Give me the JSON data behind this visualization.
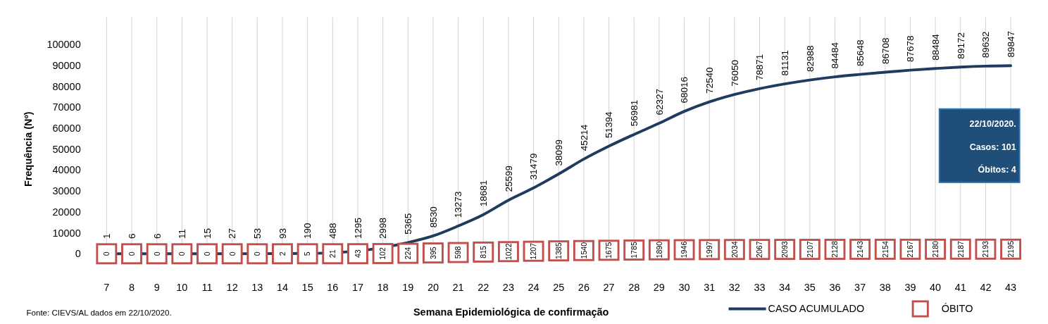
{
  "chart_data": {
    "type": "line",
    "xlabel": "Semana Epidemiológica de confirmação",
    "ylabel": "Frequência (Nº)",
    "categories": [
      "7",
      "8",
      "9",
      "10",
      "11",
      "12",
      "13",
      "14",
      "15",
      "16",
      "17",
      "18",
      "19",
      "20",
      "21",
      "22",
      "23",
      "24",
      "25",
      "26",
      "27",
      "28",
      "29",
      "30",
      "31",
      "32",
      "33",
      "34",
      "35",
      "36",
      "37",
      "38",
      "39",
      "40",
      "41",
      "42",
      "43"
    ],
    "series": [
      {
        "name": "CASO ACUMULADO",
        "color": "#1f3b5e",
        "marker": "none",
        "values": [
          1,
          6,
          6,
          11,
          15,
          27,
          53,
          93,
          190,
          488,
          1295,
          2998,
          5365,
          8530,
          13273,
          18681,
          25599,
          31479,
          38099,
          45214,
          51394,
          56981,
          62327,
          68016,
          72540,
          76050,
          78871,
          81131,
          82988,
          84484,
          85648,
          86708,
          87678,
          88484,
          89172,
          89632,
          89847
        ]
      },
      {
        "name": "ÓBITO",
        "type": "scatter",
        "color": "#c0504d",
        "marker": "square",
        "values": [
          0,
          0,
          0,
          0,
          0,
          0,
          0,
          2,
          5,
          21,
          43,
          102,
          224,
          395,
          598,
          815,
          1022,
          1207,
          1385,
          1540,
          1675,
          1785,
          1890,
          1946,
          1997,
          2034,
          2067,
          2093,
          2107,
          2128,
          2143,
          2154,
          2167,
          2180,
          2187,
          2193,
          2195
        ]
      }
    ],
    "ylim": [
      0,
      100000
    ],
    "yticks": [
      0,
      10000,
      20000,
      30000,
      40000,
      50000,
      60000,
      70000,
      80000,
      90000,
      100000
    ],
    "grid": "x",
    "data_labels": true,
    "legend": "bottom right",
    "annotations": [
      "22/10/2020.",
      "Casos: 101",
      "Óbitos: 4",
      "Fonte: CIEVS/AL dados em 22/10/2020."
    ]
  }
}
